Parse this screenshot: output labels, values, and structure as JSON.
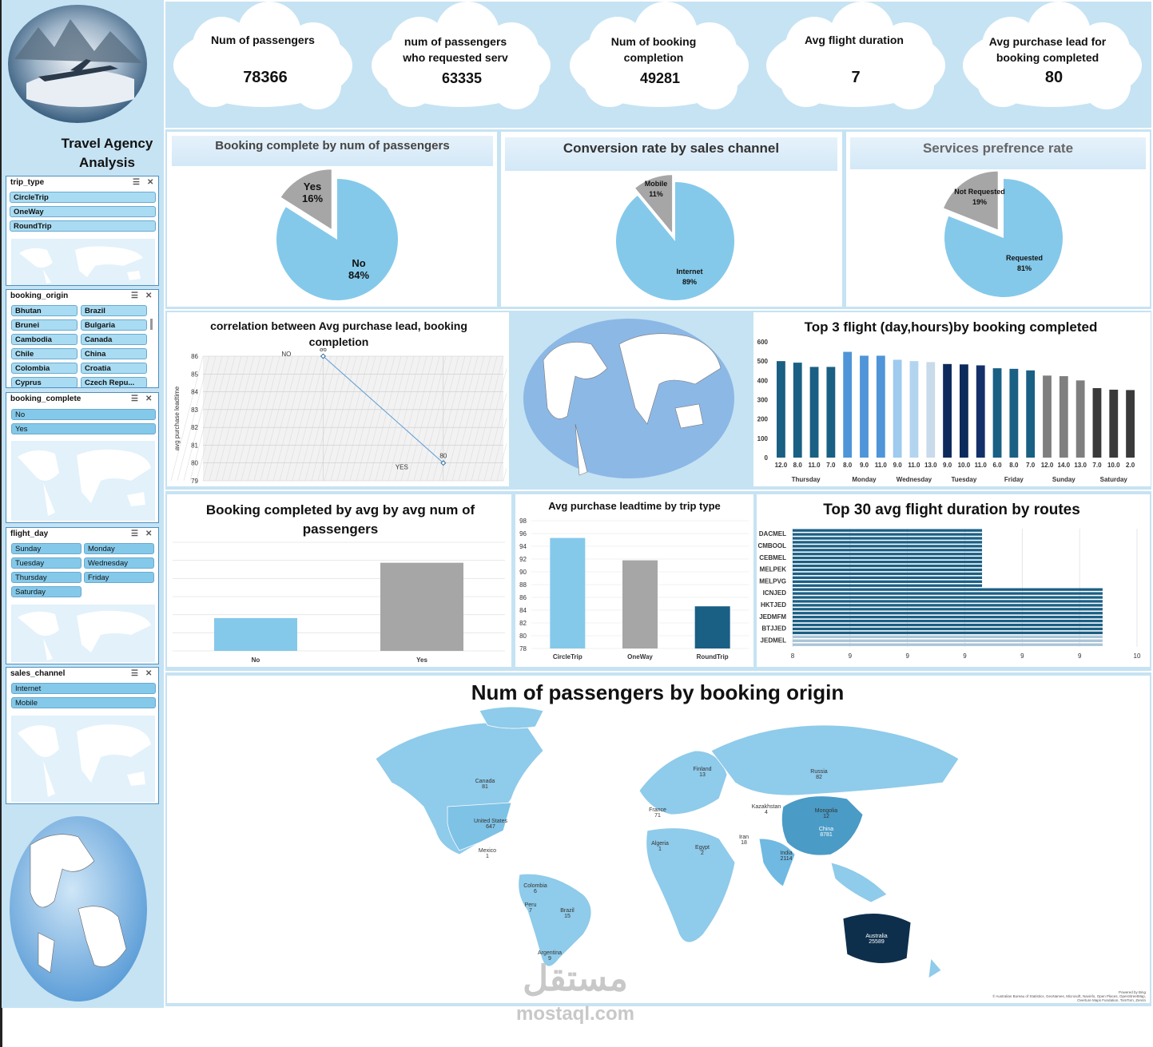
{
  "app": {
    "title_line1": "Travel Agency",
    "title_line2": "Analysis"
  },
  "kpis": [
    {
      "label_line1": "Num of passengers",
      "label_line2": "",
      "value": "78366"
    },
    {
      "label_line1": "num of passengers",
      "label_line2": "who requested serv",
      "value": "63335"
    },
    {
      "label_line1": "Num of booking",
      "label_line2": "completion",
      "value": "49281"
    },
    {
      "label_line1": "Avg flight duration",
      "label_line2": "",
      "value": "7"
    },
    {
      "label_line1": "Avg purchase lead for",
      "label_line2": "booking completed",
      "value": "80"
    }
  ],
  "slicers": {
    "trip_type": {
      "title": "trip_type",
      "items": [
        "CircleTrip",
        "OneWay",
        "RoundTrip"
      ]
    },
    "booking_origin": {
      "title": "booking_origin",
      "items": [
        "Bhutan",
        "Brazil",
        "Brunei",
        "Bulgaria",
        "Cambodia",
        "Canada",
        "Chile",
        "China",
        "Colombia",
        "Croatia",
        "Cyprus",
        "Czech Repu..."
      ]
    },
    "booking_complete": {
      "title": "booking_complete",
      "items": [
        "No",
        "Yes"
      ]
    },
    "flight_day": {
      "title": "flight_day",
      "items": [
        "Sunday",
        "Monday",
        "Tuesday",
        "Wednesday",
        "Thursday",
        "Friday",
        "Saturday"
      ]
    },
    "sales_channel": {
      "title": "sales_channel",
      "items": [
        "Internet",
        "Mobile"
      ]
    }
  },
  "pies": [
    {
      "title": "Booking complete by num of passengers",
      "big": {
        "label": "No",
        "pct": "84%",
        "value": 84
      },
      "small": {
        "label": "Yes",
        "pct": "16%",
        "value": 16
      }
    },
    {
      "title": "Conversion rate by sales channel",
      "big": {
        "label": "Internet",
        "pct": "89%",
        "value": 89
      },
      "small": {
        "label": "Mobile",
        "pct": "11%",
        "value": 11
      }
    },
    {
      "title": "Services prefrence rate",
      "big": {
        "label": "Requested",
        "pct": "81%",
        "value": 81
      },
      "small": {
        "label": "Not Requested",
        "pct": "19%",
        "value": 19
      }
    }
  ],
  "scatter": {
    "title_line1": "correlation between Avg purchase lead, booking",
    "title_line2": "completion",
    "ylabel": "avg purchase leadtime",
    "yticks": [
      "86",
      "85",
      "84",
      "83",
      "82",
      "81",
      "80",
      "79"
    ],
    "points": [
      {
        "label": "NO",
        "value": 86
      },
      {
        "label": "YES",
        "value": 80
      }
    ]
  },
  "top3": {
    "title": "Top 3 flight (day,hours)by booking completed",
    "yticks": [
      "600",
      "500",
      "400",
      "300",
      "200",
      "100",
      "0"
    ],
    "groups": [
      "Thursday",
      "Monday",
      "Wednesday",
      "Tuesday",
      "Friday",
      "Sunday",
      "Saturday"
    ]
  },
  "avg_pass": {
    "title_line1": "Booking completed by avg by avg num of",
    "title_line2": "passengers",
    "categories": [
      "No",
      "Yes"
    ]
  },
  "leadtime": {
    "title": "Avg purchase leadtime by trip type",
    "yticks": [
      "98",
      "96",
      "94",
      "92",
      "90",
      "88",
      "86",
      "84",
      "82",
      "80",
      "78"
    ],
    "categories": [
      "CircleTrip",
      "OneWay",
      "RoundTrip"
    ]
  },
  "routes": {
    "title": "Top 30 avg flight duration by routes",
    "labels": [
      "DACMEL",
      "CMBOOL",
      "CEBMEL",
      "MELPEK",
      "MELPVG",
      "ICNJED",
      "HKTJED",
      "JEDMFM",
      "BTJJED",
      "JEDMEL"
    ],
    "xticks": [
      "8",
      "9",
      "9",
      "9",
      "9",
      "9",
      "10"
    ]
  },
  "map": {
    "title": "Num of passengers by booking origin",
    "labels": [
      {
        "name": "Canada",
        "value": "81"
      },
      {
        "name": "United States",
        "value": "647"
      },
      {
        "name": "Mexico",
        "value": "1"
      },
      {
        "name": "Colombia",
        "value": "6"
      },
      {
        "name": "Peru",
        "value": "7"
      },
      {
        "name": "Brazil",
        "value": "15"
      },
      {
        "name": "Argentina",
        "value": "9"
      },
      {
        "name": "Russia",
        "value": "82"
      },
      {
        "name": "Kazakhstan",
        "value": "4"
      },
      {
        "name": "Mongolia",
        "value": "12"
      },
      {
        "name": "China",
        "value": "8781"
      },
      {
        "name": "India",
        "value": "2114"
      },
      {
        "name": "Iran",
        "value": "18"
      },
      {
        "name": "Algeria",
        "value": "1"
      },
      {
        "name": "Egypt",
        "value": "2"
      },
      {
        "name": "France",
        "value": "71"
      },
      {
        "name": "Finland",
        "value": "13"
      },
      {
        "name": "Australia",
        "value": "25589"
      }
    ],
    "credit_line1": "Powered by Bing",
    "credit_line2": "© Australian Bureau of Statistics, GeoNames, Microsoft, Navinfo, Open Places, OpenStreetMap, Overture Maps Fundation, TomTom, Zenrin"
  },
  "watermark": {
    "arabic": "مستقل",
    "latin": "mostaql.com"
  },
  "colors": {
    "light_blue": "#84c9ea",
    "gray": "#a6a6a6",
    "dark_blue": "#1a5f84",
    "navy": "#0d2a5c",
    "panel_bg": "#c6e3f3"
  },
  "chart_data": [
    {
      "type": "pie",
      "title": "Booking complete by num of passengers",
      "categories": [
        "No",
        "Yes"
      ],
      "values": [
        84,
        16
      ]
    },
    {
      "type": "pie",
      "title": "Conversion rate by sales channel",
      "categories": [
        "Internet",
        "Mobile"
      ],
      "values": [
        89,
        11
      ]
    },
    {
      "type": "pie",
      "title": "Services prefrence rate",
      "categories": [
        "Requested",
        "Not Requested"
      ],
      "values": [
        81,
        19
      ]
    },
    {
      "type": "line",
      "title": "correlation between Avg purchase lead, booking completion",
      "categories": [
        "NO",
        "YES"
      ],
      "values": [
        86,
        80
      ],
      "ylabel": "avg purchase leadtime",
      "ylim": [
        79,
        86
      ]
    },
    {
      "type": "bar",
      "title": "Top 3 flight (day,hours)by booking completed",
      "ylim": [
        0,
        600
      ],
      "categories": [
        "12.0",
        "8.0",
        "11.0",
        "7.0",
        "8.0",
        "9.0",
        "11.0",
        "9.0",
        "11.0",
        "13.0",
        "9.0",
        "10.0",
        "11.0",
        "6.0",
        "8.0",
        "7.0",
        "12.0",
        "14.0",
        "13.0",
        "7.0",
        "10.0",
        "2.0"
      ],
      "groups": [
        "Thursday",
        "Thursday",
        "Thursday",
        "Thursday",
        "Monday",
        "Monday",
        "Monday",
        "Wednesday",
        "Wednesday",
        "Wednesday",
        "Tuesday",
        "Tuesday",
        "Tuesday",
        "Friday",
        "Friday",
        "Friday",
        "Sunday",
        "Sunday",
        "Sunday",
        "Saturday",
        "Saturday",
        "Saturday"
      ],
      "values": [
        500,
        492,
        470,
        470,
        548,
        528,
        528,
        507,
        500,
        495,
        485,
        483,
        478,
        463,
        460,
        452,
        425,
        422,
        400,
        360,
        352,
        350
      ]
    },
    {
      "type": "bar",
      "title": "Booking completed by avg by avg num of passengers",
      "categories": [
        "No",
        "Yes"
      ],
      "values": [
        1.6,
        4.3
      ],
      "ylim": [
        0,
        5.3
      ]
    },
    {
      "type": "bar",
      "title": "Avg purchase leadtime by trip type",
      "categories": [
        "CircleTrip",
        "OneWay",
        "RoundTrip"
      ],
      "values": [
        95.3,
        91.8,
        84.6
      ],
      "ylim": [
        78,
        98
      ]
    },
    {
      "type": "bar",
      "title": "Top 30 avg flight duration by routes",
      "orientation": "horizontal",
      "xlim": [
        8,
        10
      ],
      "categories": [
        "DACMEL",
        "CMBOOL",
        "CEBMEL",
        "MELPEK",
        "MELPVG",
        "ICNJED",
        "HKTJED",
        "JEDMFM",
        "BTJJED",
        "JEDMEL"
      ],
      "values": [
        9.1,
        9.1,
        9.1,
        9.1,
        9.1,
        9.8,
        9.8,
        9.8,
        9.8,
        9.8
      ]
    },
    {
      "type": "table",
      "title": "Num of passengers by booking origin",
      "categories": [
        "Australia",
        "China",
        "India",
        "United States",
        "Russia",
        "Canada",
        "France"
      ],
      "values": [
        25589,
        8781,
        2114,
        647,
        82,
        81,
        71
      ]
    }
  ]
}
